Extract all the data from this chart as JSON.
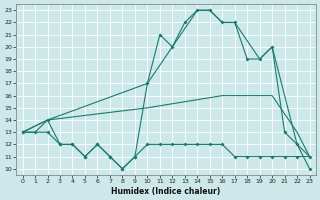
{
  "xlabel": "Humidex (Indice chaleur)",
  "xlim": [
    -0.5,
    23.5
  ],
  "ylim": [
    9.5,
    23.5
  ],
  "yticks": [
    10,
    11,
    12,
    13,
    14,
    15,
    16,
    17,
    18,
    19,
    20,
    21,
    22,
    23
  ],
  "xticks": [
    0,
    1,
    2,
    3,
    4,
    5,
    6,
    7,
    8,
    9,
    10,
    11,
    12,
    13,
    14,
    15,
    16,
    17,
    18,
    19,
    20,
    21,
    22,
    23
  ],
  "bg_color": "#cce8e8",
  "grid_color": "#ffffff",
  "line_color": "#1a7a6e",
  "line1_x": [
    0,
    1,
    2,
    3,
    4,
    5,
    6,
    7,
    8,
    9,
    10,
    11,
    12,
    13,
    14,
    15,
    16,
    17,
    18,
    19,
    20,
    21,
    22,
    23
  ],
  "line1_y": [
    13,
    13,
    14,
    12,
    12,
    11,
    12,
    11,
    10,
    11,
    17,
    21,
    20,
    22,
    23,
    23,
    22,
    22,
    19,
    19,
    20,
    13,
    12,
    10
  ],
  "line2_x": [
    0,
    2,
    10,
    14,
    15,
    16,
    17,
    19,
    20,
    22,
    23
  ],
  "line2_y": [
    13,
    14,
    17,
    23,
    23,
    22,
    22,
    19,
    20,
    12,
    11
  ],
  "line3_x": [
    0,
    2,
    10,
    16,
    20,
    22,
    23
  ],
  "line3_y": [
    13,
    14,
    15,
    16,
    16,
    13,
    11
  ],
  "line4_x": [
    0,
    2,
    3,
    4,
    5,
    6,
    7,
    8,
    9,
    10,
    11,
    12,
    13,
    14,
    15,
    16,
    17,
    18,
    19,
    20,
    21,
    22,
    23
  ],
  "line4_y": [
    13,
    13,
    12,
    12,
    11,
    12,
    11,
    10,
    11,
    12,
    12,
    12,
    12,
    12,
    12,
    12,
    11,
    11,
    11,
    11,
    11,
    11,
    11
  ]
}
